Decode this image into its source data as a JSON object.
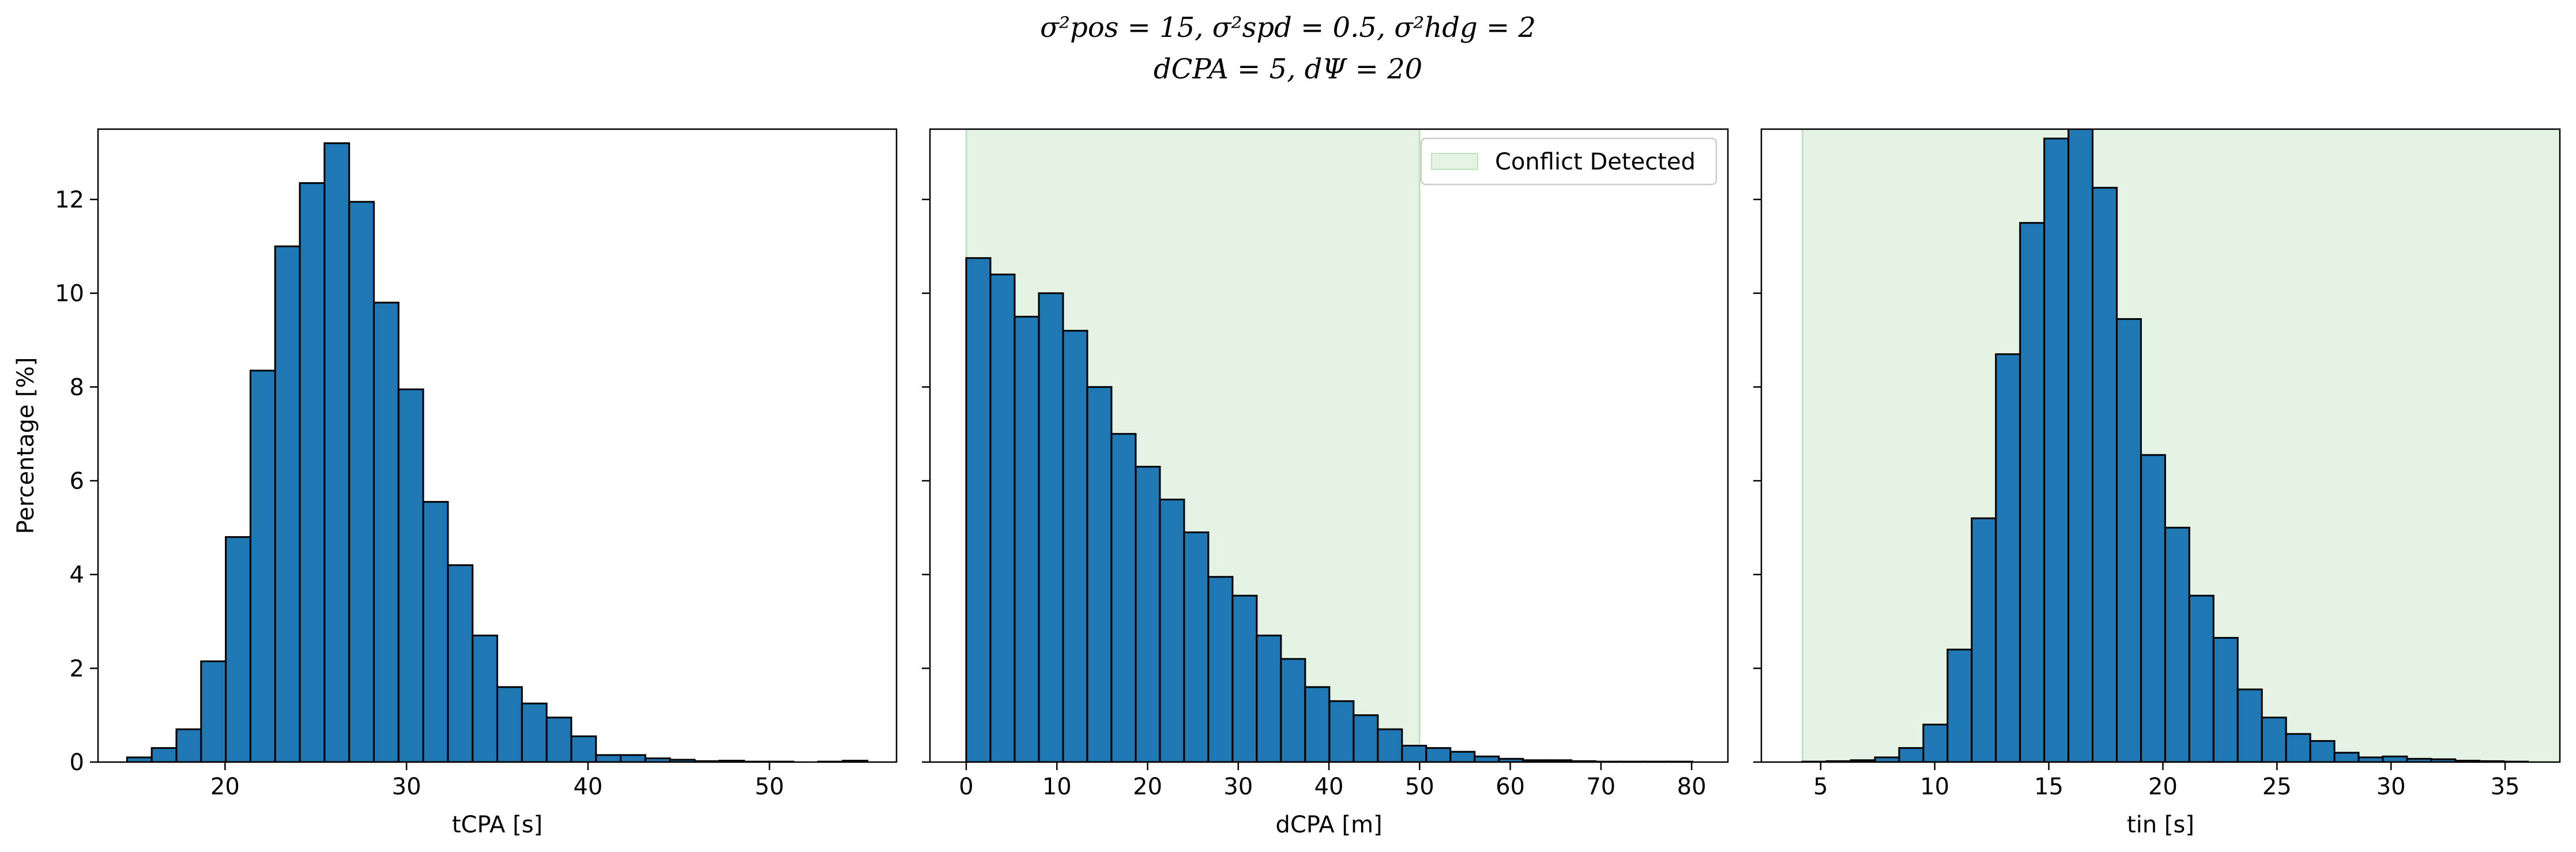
{
  "figure": {
    "title_line1": "σ²pos = 15, σ²spd = 0.5, σ²hdg = 2",
    "title_line2": "dCPA = 5, dΨ = 20"
  },
  "colors": {
    "bar": "#1f77b4",
    "edge": "#000000",
    "shade": "#2ca02c"
  },
  "chart_data": [
    {
      "type": "bar",
      "xlabel": "tCPA [s]",
      "ylabel": "Percentage [%]",
      "xlim": [
        13,
        57
      ],
      "ylim": [
        0,
        13.5
      ],
      "xticks": [
        20,
        30,
        40,
        50
      ],
      "yticks": [
        0,
        2,
        4,
        6,
        8,
        10,
        12
      ],
      "bin_start": 14.6,
      "bin_width": 1.36,
      "values": [
        0.1,
        0.3,
        0.7,
        2.15,
        4.8,
        8.35,
        11.0,
        12.35,
        13.2,
        11.95,
        9.8,
        7.95,
        5.55,
        4.2,
        2.7,
        1.6,
        1.25,
        0.95,
        0.55,
        0.15,
        0.15,
        0.08,
        0.05,
        0.02,
        0.03,
        0.01,
        0.01,
        0.0,
        0.01,
        0.03
      ]
    },
    {
      "type": "bar",
      "xlabel": "dCPA [m]",
      "ylabel": "",
      "xlim": [
        -4,
        84
      ],
      "ylim": [
        0,
        13.5
      ],
      "xticks": [
        0,
        10,
        20,
        30,
        40,
        50,
        60,
        70,
        80
      ],
      "yticks": [
        0,
        2,
        4,
        6,
        8,
        10,
        12
      ],
      "bin_start": 0,
      "bin_width": 2.67,
      "values": [
        10.75,
        10.4,
        9.5,
        10.0,
        9.2,
        8.0,
        7.0,
        6.3,
        5.6,
        4.9,
        3.95,
        3.55,
        2.7,
        2.2,
        1.6,
        1.3,
        1.0,
        0.7,
        0.35,
        0.3,
        0.22,
        0.12,
        0.07,
        0.04,
        0.04,
        0.02,
        0.01,
        0.01,
        0.01,
        0.01
      ],
      "shaded_region": [
        0,
        50
      ],
      "legend": {
        "label": "Conflict Detected",
        "position": "top-right"
      }
    },
    {
      "type": "bar",
      "xlabel": "tin [s]",
      "ylabel": "",
      "xlim": [
        2.4,
        37.4
      ],
      "ylim": [
        0,
        13.5
      ],
      "xticks": [
        5,
        10,
        15,
        20,
        25,
        30,
        35
      ],
      "yticks": [
        0,
        2,
        4,
        6,
        8,
        10,
        12
      ],
      "bin_start": 4.2,
      "bin_width": 1.06,
      "values": [
        0.01,
        0.02,
        0.04,
        0.1,
        0.3,
        0.8,
        2.4,
        5.2,
        8.7,
        11.5,
        13.3,
        13.6,
        12.25,
        9.45,
        6.55,
        5.0,
        3.55,
        2.65,
        1.55,
        0.95,
        0.6,
        0.45,
        0.2,
        0.1,
        0.12,
        0.07,
        0.06,
        0.03,
        0.02,
        0.01
      ],
      "shaded_region": [
        4.2,
        50
      ]
    }
  ]
}
